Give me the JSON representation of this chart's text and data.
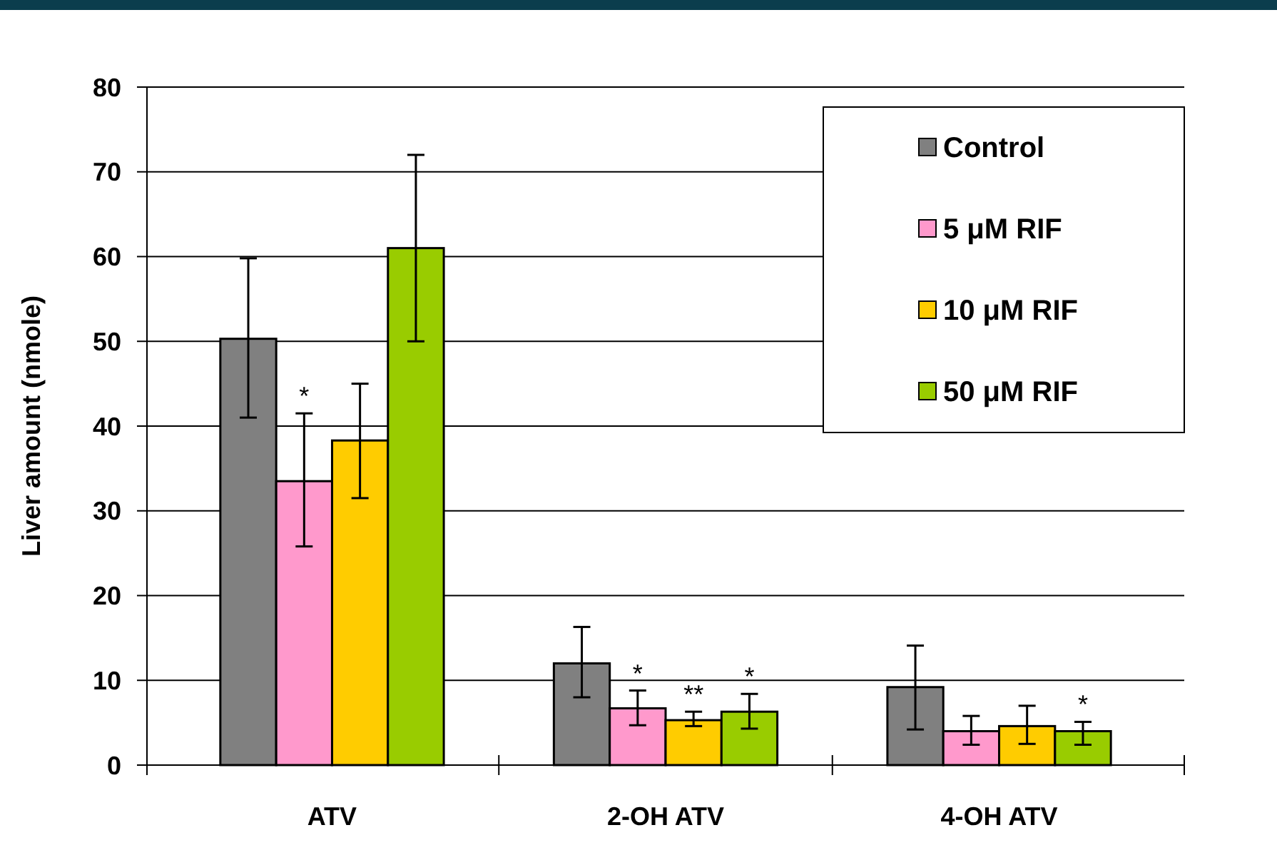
{
  "chart_data": {
    "type": "bar",
    "ylabel": "Liver amount (nmole)",
    "categories": [
      "ATV",
      "2-OH ATV",
      "4-OH ATV"
    ],
    "series": [
      {
        "name": "Control",
        "color": "#808080",
        "values": [
          50.3,
          12,
          9.2
        ],
        "errors": [
          [
            41,
            59.8
          ],
          [
            8,
            16.3
          ],
          [
            4.2,
            14.1
          ]
        ]
      },
      {
        "name": "5 μM RIF",
        "color": "#ff99cc",
        "values": [
          33.5,
          6.7,
          4
        ],
        "errors": [
          [
            25.8,
            41.5
          ],
          [
            4.7,
            8.8
          ],
          [
            2.4,
            5.8
          ]
        ],
        "value_labels": [
          "*",
          "*",
          null
        ]
      },
      {
        "name": "10 μM RIF",
        "color": "#ffcc00",
        "values": [
          38.3,
          5.3,
          4.6
        ],
        "errors": [
          [
            31.5,
            45
          ],
          [
            4.6,
            6.3
          ],
          [
            2.5,
            7
          ]
        ],
        "value_labels": [
          null,
          "**",
          null
        ]
      },
      {
        "name": "50 μM RIF",
        "color": "#99cc00",
        "values": [
          61,
          6.3,
          4
        ],
        "errors": [
          [
            50,
            72
          ],
          [
            4.3,
            8.4
          ],
          [
            2.4,
            5.1
          ]
        ],
        "value_labels": [
          null,
          "*",
          "*"
        ]
      }
    ],
    "ylim": [
      0,
      80
    ],
    "yticks": [
      0,
      10,
      20,
      30,
      40,
      50,
      60,
      70,
      80
    ],
    "grid": "y",
    "legend": "top right"
  }
}
